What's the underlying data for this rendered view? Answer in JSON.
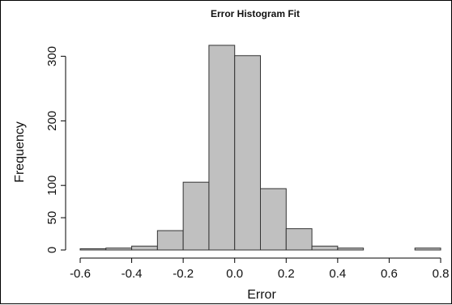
{
  "chart_data": {
    "type": "bar",
    "title": "Error Histogram Fit",
    "xlabel": "Error",
    "ylabel": "Frequency",
    "bin_edges": [
      -0.6,
      -0.5,
      -0.4,
      -0.3,
      -0.2,
      -0.1,
      0.0,
      0.1,
      0.2,
      0.3,
      0.4,
      0.5,
      0.6,
      0.7,
      0.8
    ],
    "values": [
      2,
      3,
      6,
      30,
      105,
      317,
      301,
      95,
      33,
      6,
      3,
      0,
      0,
      3
    ],
    "x_ticks": [
      "-0.6",
      "-0.4",
      "-0.2",
      "0.0",
      "0.2",
      "0.4",
      "0.6",
      "0.8"
    ],
    "x_tick_values": [
      -0.6,
      -0.4,
      -0.2,
      0.0,
      0.2,
      0.4,
      0.6,
      0.8
    ],
    "y_ticks": [
      "0",
      "50",
      "100",
      "200",
      "300"
    ],
    "y_tick_values": [
      0,
      50,
      100,
      200,
      300
    ],
    "xlim": [
      -0.6,
      0.8
    ],
    "ylim": [
      0,
      317
    ],
    "grid": false,
    "bar_color": "#c0c0c0",
    "bar_edge_color": "#333333"
  }
}
